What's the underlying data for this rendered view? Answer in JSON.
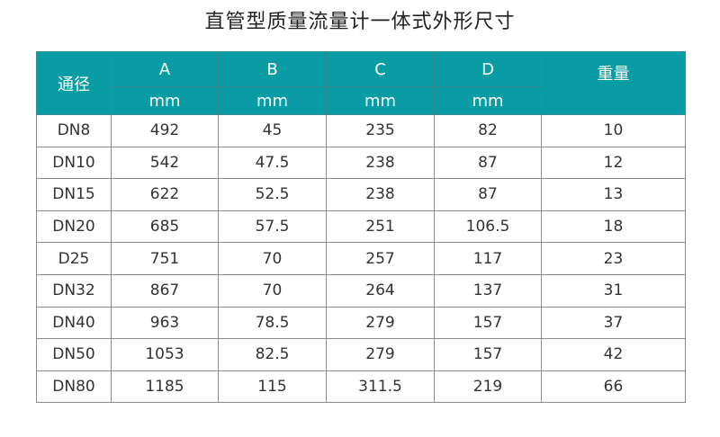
{
  "title": "直管型质量流量计一体式外形尺寸",
  "header": {
    "diameter": "通径",
    "columns": [
      "A",
      "B",
      "C",
      "D"
    ],
    "unit": "mm",
    "weight": "重量"
  },
  "rows": [
    [
      "DN8",
      "492",
      "45",
      "235",
      "82",
      "10"
    ],
    [
      "DN10",
      "542",
      "47.5",
      "238",
      "87",
      "12"
    ],
    [
      "DN15",
      "622",
      "52.5",
      "238",
      "87",
      "13"
    ],
    [
      "DN20",
      "685",
      "57.5",
      "251",
      "106.5",
      "18"
    ],
    [
      "D25",
      "751",
      "70",
      "257",
      "117",
      "23"
    ],
    [
      "DN32",
      "867",
      "70",
      "264",
      "137",
      "31"
    ],
    [
      "DN40",
      "963",
      "78.5",
      "279",
      "157",
      "37"
    ],
    [
      "DN50",
      "1053",
      "82.5",
      "279",
      "157",
      "42"
    ],
    [
      "DN80",
      "1185",
      "115",
      "311.5",
      "219",
      "66"
    ]
  ],
  "colors": {
    "header_bg": "#099ca4",
    "header_text": "#ffffff",
    "border": "#8a8a8a"
  }
}
